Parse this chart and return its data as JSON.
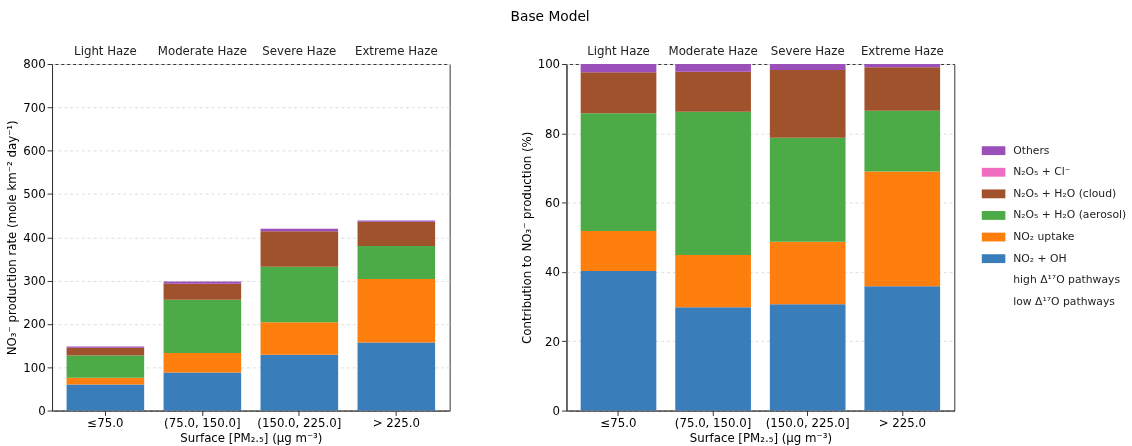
{
  "chart_data": [
    {
      "type": "bar",
      "stacked": true,
      "categories": [
        "≤75.0",
        "(75.0, 150.0]",
        "(150.0, 225.0]",
        "> 225.0"
      ],
      "xlabel": "Surface [PM₂.₅] (μg m⁻³)",
      "ylabel": "NO₃⁻ production rate (mole km⁻² day⁻¹)",
      "ylim": [
        0,
        800
      ],
      "yticks": [
        0,
        100,
        200,
        300,
        400,
        500,
        600,
        700,
        800
      ],
      "grid": "y",
      "legend": false,
      "series": [
        {
          "color": "#3a7dbb",
          "values": [
            60,
            88,
            129,
            157
          ]
        },
        {
          "color": "#ff7f0e",
          "values": [
            16,
            45,
            75,
            147
          ]
        },
        {
          "color": "#4dab47",
          "values": [
            51,
            123,
            128,
            76
          ]
        },
        {
          "color": "#a0522d",
          "values": [
            18,
            37,
            82,
            56
          ]
        },
        {
          "color": "#f06cc0",
          "values": [
            0,
            0,
            0,
            0
          ]
        },
        {
          "color": "#9b4fb8",
          "values": [
            3,
            5,
            6,
            3
          ]
        }
      ],
      "annotations": [
        "Light Haze",
        "Moderate Haze",
        "Severe Haze",
        "Extreme Haze"
      ]
    },
    {
      "type": "bar",
      "title": "Base Model",
      "stacked": true,
      "categories": [
        "≤75.0",
        "(75.0, 150.0]",
        "(150.0, 225.0]",
        "> 225.0"
      ],
      "xlabel": "Surface [PM₂.₅] (μg m⁻³)",
      "ylabel": "Contribution to NO₃⁻ production (%)",
      "ylim": [
        0,
        100
      ],
      "yticks": [
        0,
        20,
        40,
        60,
        80,
        100
      ],
      "grid": "y",
      "legend": "right",
      "series": [
        {
          "name": "NO₂ + OH",
          "color": "#3a7dbb",
          "values": [
            40.3,
            29.8,
            30.7,
            35.9
          ]
        },
        {
          "name": "NO₂ uptake",
          "color": "#ff7f0e",
          "values": [
            11.5,
            15.1,
            18.0,
            33.1
          ]
        },
        {
          "name": "N₂O₅ + H₂O (aerosol)",
          "color": "#4dab47",
          "values": [
            34.0,
            41.3,
            30.0,
            17.5
          ]
        },
        {
          "name": "N₂O₅ + H₂O (cloud)",
          "color": "#a0522d",
          "values": [
            11.8,
            11.6,
            19.6,
            12.6
          ]
        },
        {
          "name": "N₂O₅ + Cl⁻",
          "color": "#f06cc0",
          "values": [
            0,
            0,
            0,
            0
          ]
        },
        {
          "name": "Others",
          "color": "#9b4fb8",
          "values": [
            2.4,
            2.2,
            1.7,
            0.9
          ]
        }
      ],
      "annotations": [
        "Light Haze",
        "Moderate Haze",
        "Severe Haze",
        "Extreme Haze",
        "high Δ¹⁷O pathways",
        "low Δ¹⁷O pathways"
      ]
    }
  ]
}
